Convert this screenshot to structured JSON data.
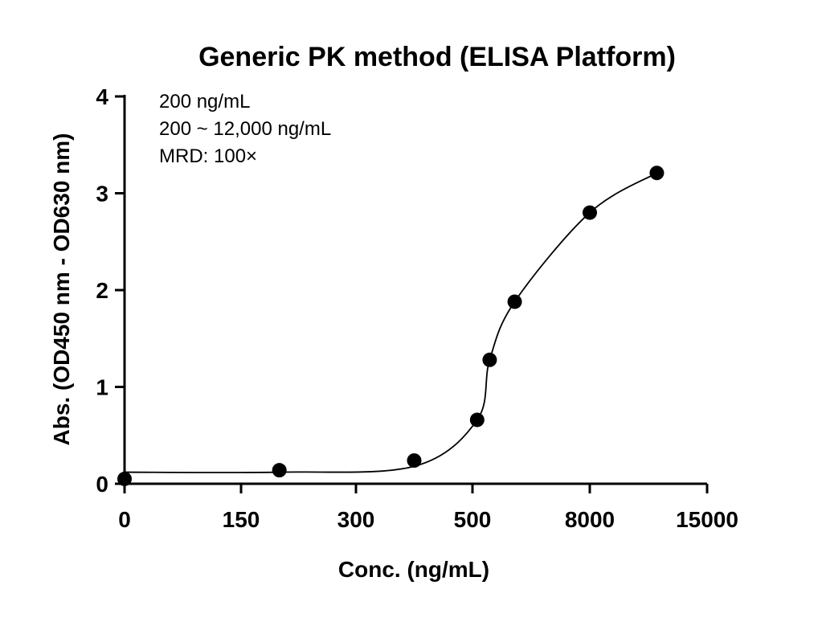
{
  "chart_data": {
    "type": "scatter",
    "title": "Generic PK method (ELISA Platform)",
    "annotations": [
      "200 ng/mL",
      "200 ~ 12,000 ng/mL",
      "MRD: 100×"
    ],
    "xlabel": "Conc. (ng/mL)",
    "ylabel": "Abs. (OD450 nm - OD630 nm)",
    "x_ticks": [
      "0",
      "150",
      "300",
      "500",
      "8000",
      "15000"
    ],
    "y_ticks": [
      "0",
      "1",
      "2",
      "3",
      "4"
    ],
    "ylim": [
      0,
      4
    ],
    "points": [
      {
        "x": 0,
        "y": 0.05
      },
      {
        "x": 200,
        "y": 0.14
      },
      {
        "x": 400,
        "y": 0.24
      },
      {
        "x": 800,
        "y": 0.66
      },
      {
        "x": 1600,
        "y": 1.28
      },
      {
        "x": 3200,
        "y": 1.88
      },
      {
        "x": 8000,
        "y": 2.8
      },
      {
        "x": 12000,
        "y": 3.21
      }
    ],
    "fit": "4PL sigmoid",
    "grid": false
  }
}
